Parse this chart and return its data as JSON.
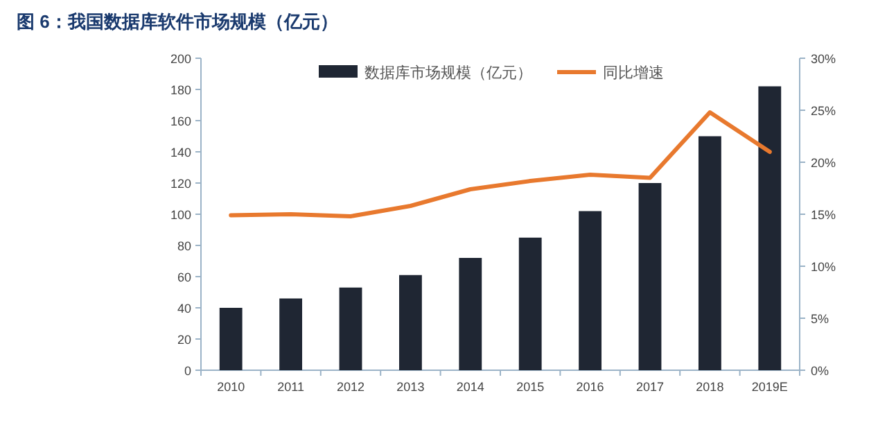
{
  "chart_data": {
    "type": "bar",
    "title": "图 6：我国数据库软件市场规模（亿元）",
    "categories": [
      "2010",
      "2011",
      "2012",
      "2013",
      "2014",
      "2015",
      "2016",
      "2017",
      "2018",
      "2019E"
    ],
    "series": [
      {
        "name": "数据库市场规模（亿元）",
        "color": "#1f2633",
        "values": [
          40,
          46,
          53,
          61,
          72,
          85,
          102,
          120,
          150,
          182
        ]
      },
      {
        "name": "同比增速",
        "type": "line",
        "axis": "y2",
        "color": "#e8792e",
        "values": [
          14.9,
          15.0,
          14.8,
          15.8,
          17.4,
          18.2,
          18.8,
          18.5,
          24.8,
          21.0
        ]
      }
    ],
    "ylim": [
      0,
      200
    ],
    "yticks": [
      0,
      20,
      40,
      60,
      80,
      100,
      120,
      140,
      160,
      180,
      200
    ],
    "y2lim": [
      0,
      30
    ],
    "y2ticks": [
      {
        "value": 0,
        "label": "0%"
      },
      {
        "value": 5,
        "label": "5%"
      },
      {
        "value": 10,
        "label": "10%"
      },
      {
        "value": 15,
        "label": "15%"
      },
      {
        "value": 20,
        "label": "20%"
      },
      {
        "value": 25,
        "label": "25%"
      },
      {
        "value": 30,
        "label": "30%"
      }
    ],
    "legend": "top",
    "grid": false
  }
}
